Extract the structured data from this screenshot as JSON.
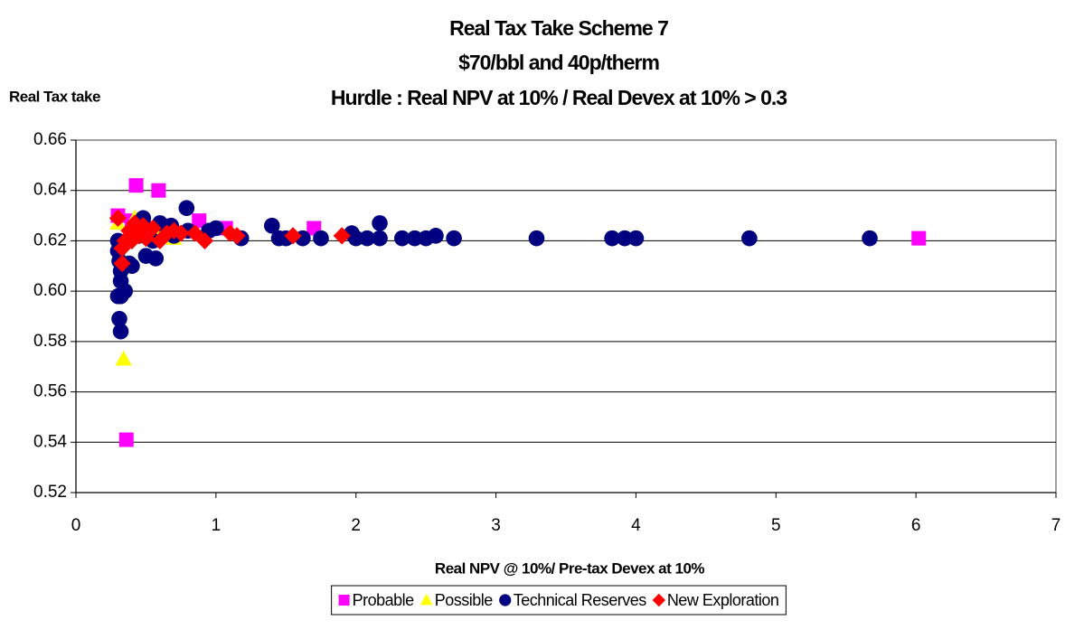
{
  "chart_data": {
    "type": "scatter",
    "title": "Real Tax Take Scheme 7",
    "subtitle": [
      "$70/bbl and 40p/therm",
      "Hurdle : Real NPV at 10% / Real Devex at 10% > 0.3"
    ],
    "y_label": "Real Tax take",
    "x_label": "Real NPV @ 10%/ Pre-tax Devex at 10%",
    "xlim": [
      0,
      7
    ],
    "xticks": [
      0,
      1,
      2,
      3,
      4,
      5,
      6,
      7
    ],
    "ylim": [
      0.52,
      0.66
    ],
    "yticks": [
      0.52,
      0.54,
      0.56,
      0.58,
      {
        "value": 0.6,
        "label": "0.60"
      },
      0.62,
      0.64,
      0.66
    ],
    "grid": true,
    "legend": "bottom",
    "series": [
      {
        "name": "Probable",
        "color": "#ff00ff",
        "marker": "square",
        "x": [
          0.3,
          0.43,
          0.59,
          0.36,
          0.88,
          1.07,
          1.7,
          6.02,
          0.5,
          0.4,
          0.65
        ],
        "values": [
          0.63,
          0.642,
          0.64,
          0.541,
          0.628,
          0.625,
          0.625,
          0.621,
          0.625,
          0.628,
          0.626
        ]
      },
      {
        "name": "Possible",
        "color": "#ffff00",
        "marker": "triangle",
        "x": [
          0.34,
          0.7,
          0.42,
          0.6,
          0.3
        ],
        "values": [
          0.573,
          0.621,
          0.629,
          0.624,
          0.627
        ]
      },
      {
        "name": "Technical Reserves",
        "color": "#000080",
        "marker": "circle",
        "x": [
          0.3,
          0.3,
          0.31,
          0.32,
          0.32,
          0.3,
          0.32,
          0.31,
          0.32,
          0.35,
          0.38,
          0.4,
          0.5,
          0.57,
          0.48,
          0.6,
          0.68,
          0.79,
          0.8,
          0.95,
          1.0,
          1.18,
          1.4,
          1.45,
          1.5,
          1.62,
          1.75,
          1.97,
          2.0,
          2.08,
          2.17,
          2.17,
          2.33,
          2.42,
          2.5,
          2.57,
          2.7,
          3.29,
          3.83,
          3.92,
          4.0,
          4.81,
          5.67,
          0.45,
          0.55,
          0.7
        ],
        "values": [
          0.62,
          0.616,
          0.612,
          0.608,
          0.604,
          0.598,
          0.598,
          0.589,
          0.584,
          0.6,
          0.611,
          0.61,
          0.614,
          0.613,
          0.629,
          0.627,
          0.626,
          0.633,
          0.624,
          0.624,
          0.625,
          0.621,
          0.626,
          0.621,
          0.621,
          0.621,
          0.621,
          0.623,
          0.621,
          0.621,
          0.627,
          0.621,
          0.621,
          0.621,
          0.621,
          0.622,
          0.621,
          0.621,
          0.621,
          0.621,
          0.621,
          0.621,
          0.621,
          0.622,
          0.62,
          0.622
        ]
      },
      {
        "name": "New Exploration",
        "color": "#ff0000",
        "marker": "diamond",
        "x": [
          0.3,
          0.33,
          0.33,
          0.35,
          0.38,
          0.42,
          0.45,
          0.5,
          0.55,
          0.6,
          0.65,
          0.7,
          0.75,
          0.85,
          0.92,
          1.1,
          1.15,
          1.55,
          1.9,
          0.4,
          0.48
        ],
        "values": [
          0.629,
          0.611,
          0.617,
          0.62,
          0.624,
          0.627,
          0.622,
          0.621,
          0.625,
          0.62,
          0.623,
          0.624,
          0.623,
          0.623,
          0.62,
          0.623,
          0.622,
          0.622,
          0.622,
          0.62,
          0.626
        ]
      }
    ]
  }
}
